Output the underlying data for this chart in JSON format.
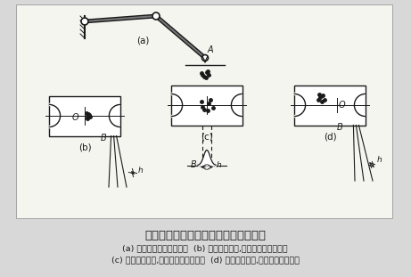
{
  "bg_color": "#d8d8d8",
  "fig_bg_color": "#d8d8d8",
  "drawing_bg": "#f5f5f0",
  "title": "工业机器人精度和重复精度的典型情况",
  "caption_line1": "(a) 重复定位精度的测定；  (b) 合理定位精度,良好重复定位精度；",
  "caption_line2": "(c) 良好定位精度,很差重复定位精度；  (d) 很差定位精度,良好重复定位精度",
  "title_fontsize": 9.5,
  "caption_fontsize": 6.8,
  "dark": "#1a1a1a",
  "mid": "#666666"
}
